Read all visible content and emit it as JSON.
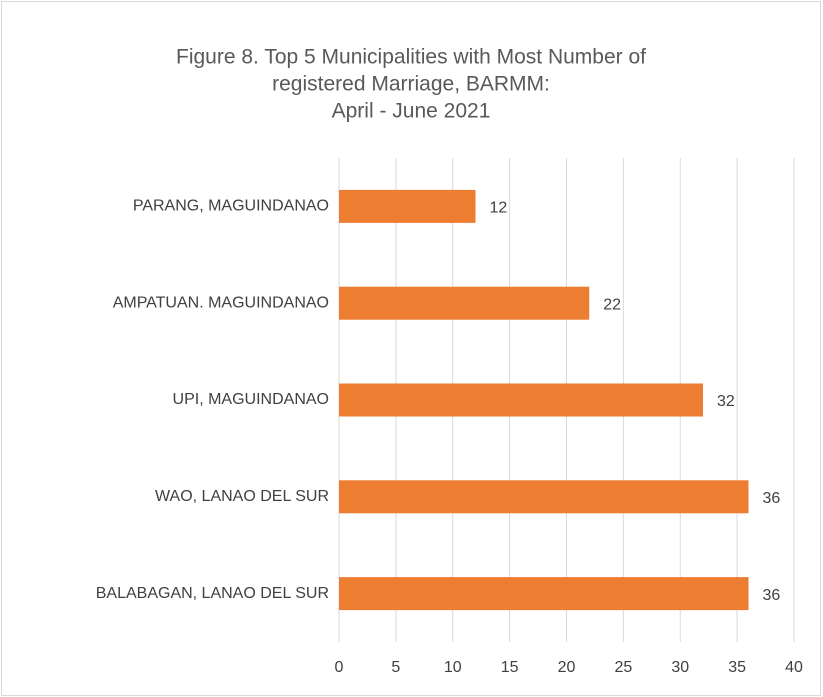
{
  "chart_data": {
    "type": "barh",
    "title": [
      "Figure 8. Top 5 Municipalities with Most Number of",
      "registered Marriage, BARMM:",
      "April - June 2021"
    ],
    "categories": [
      "PARANG, MAGUINDANAO",
      "AMPATUAN. MAGUINDANAO",
      "UPI, MAGUINDANAO",
      "WAO, LANAO DEL SUR",
      "BALABAGAN, LANAO DEL SUR"
    ],
    "values": [
      12,
      22,
      32,
      36,
      36
    ],
    "color": "#ed7d31",
    "xlim": [
      0,
      40
    ],
    "xticks": [
      0,
      5,
      10,
      15,
      20,
      25,
      30,
      35,
      40
    ],
    "grid": true
  }
}
